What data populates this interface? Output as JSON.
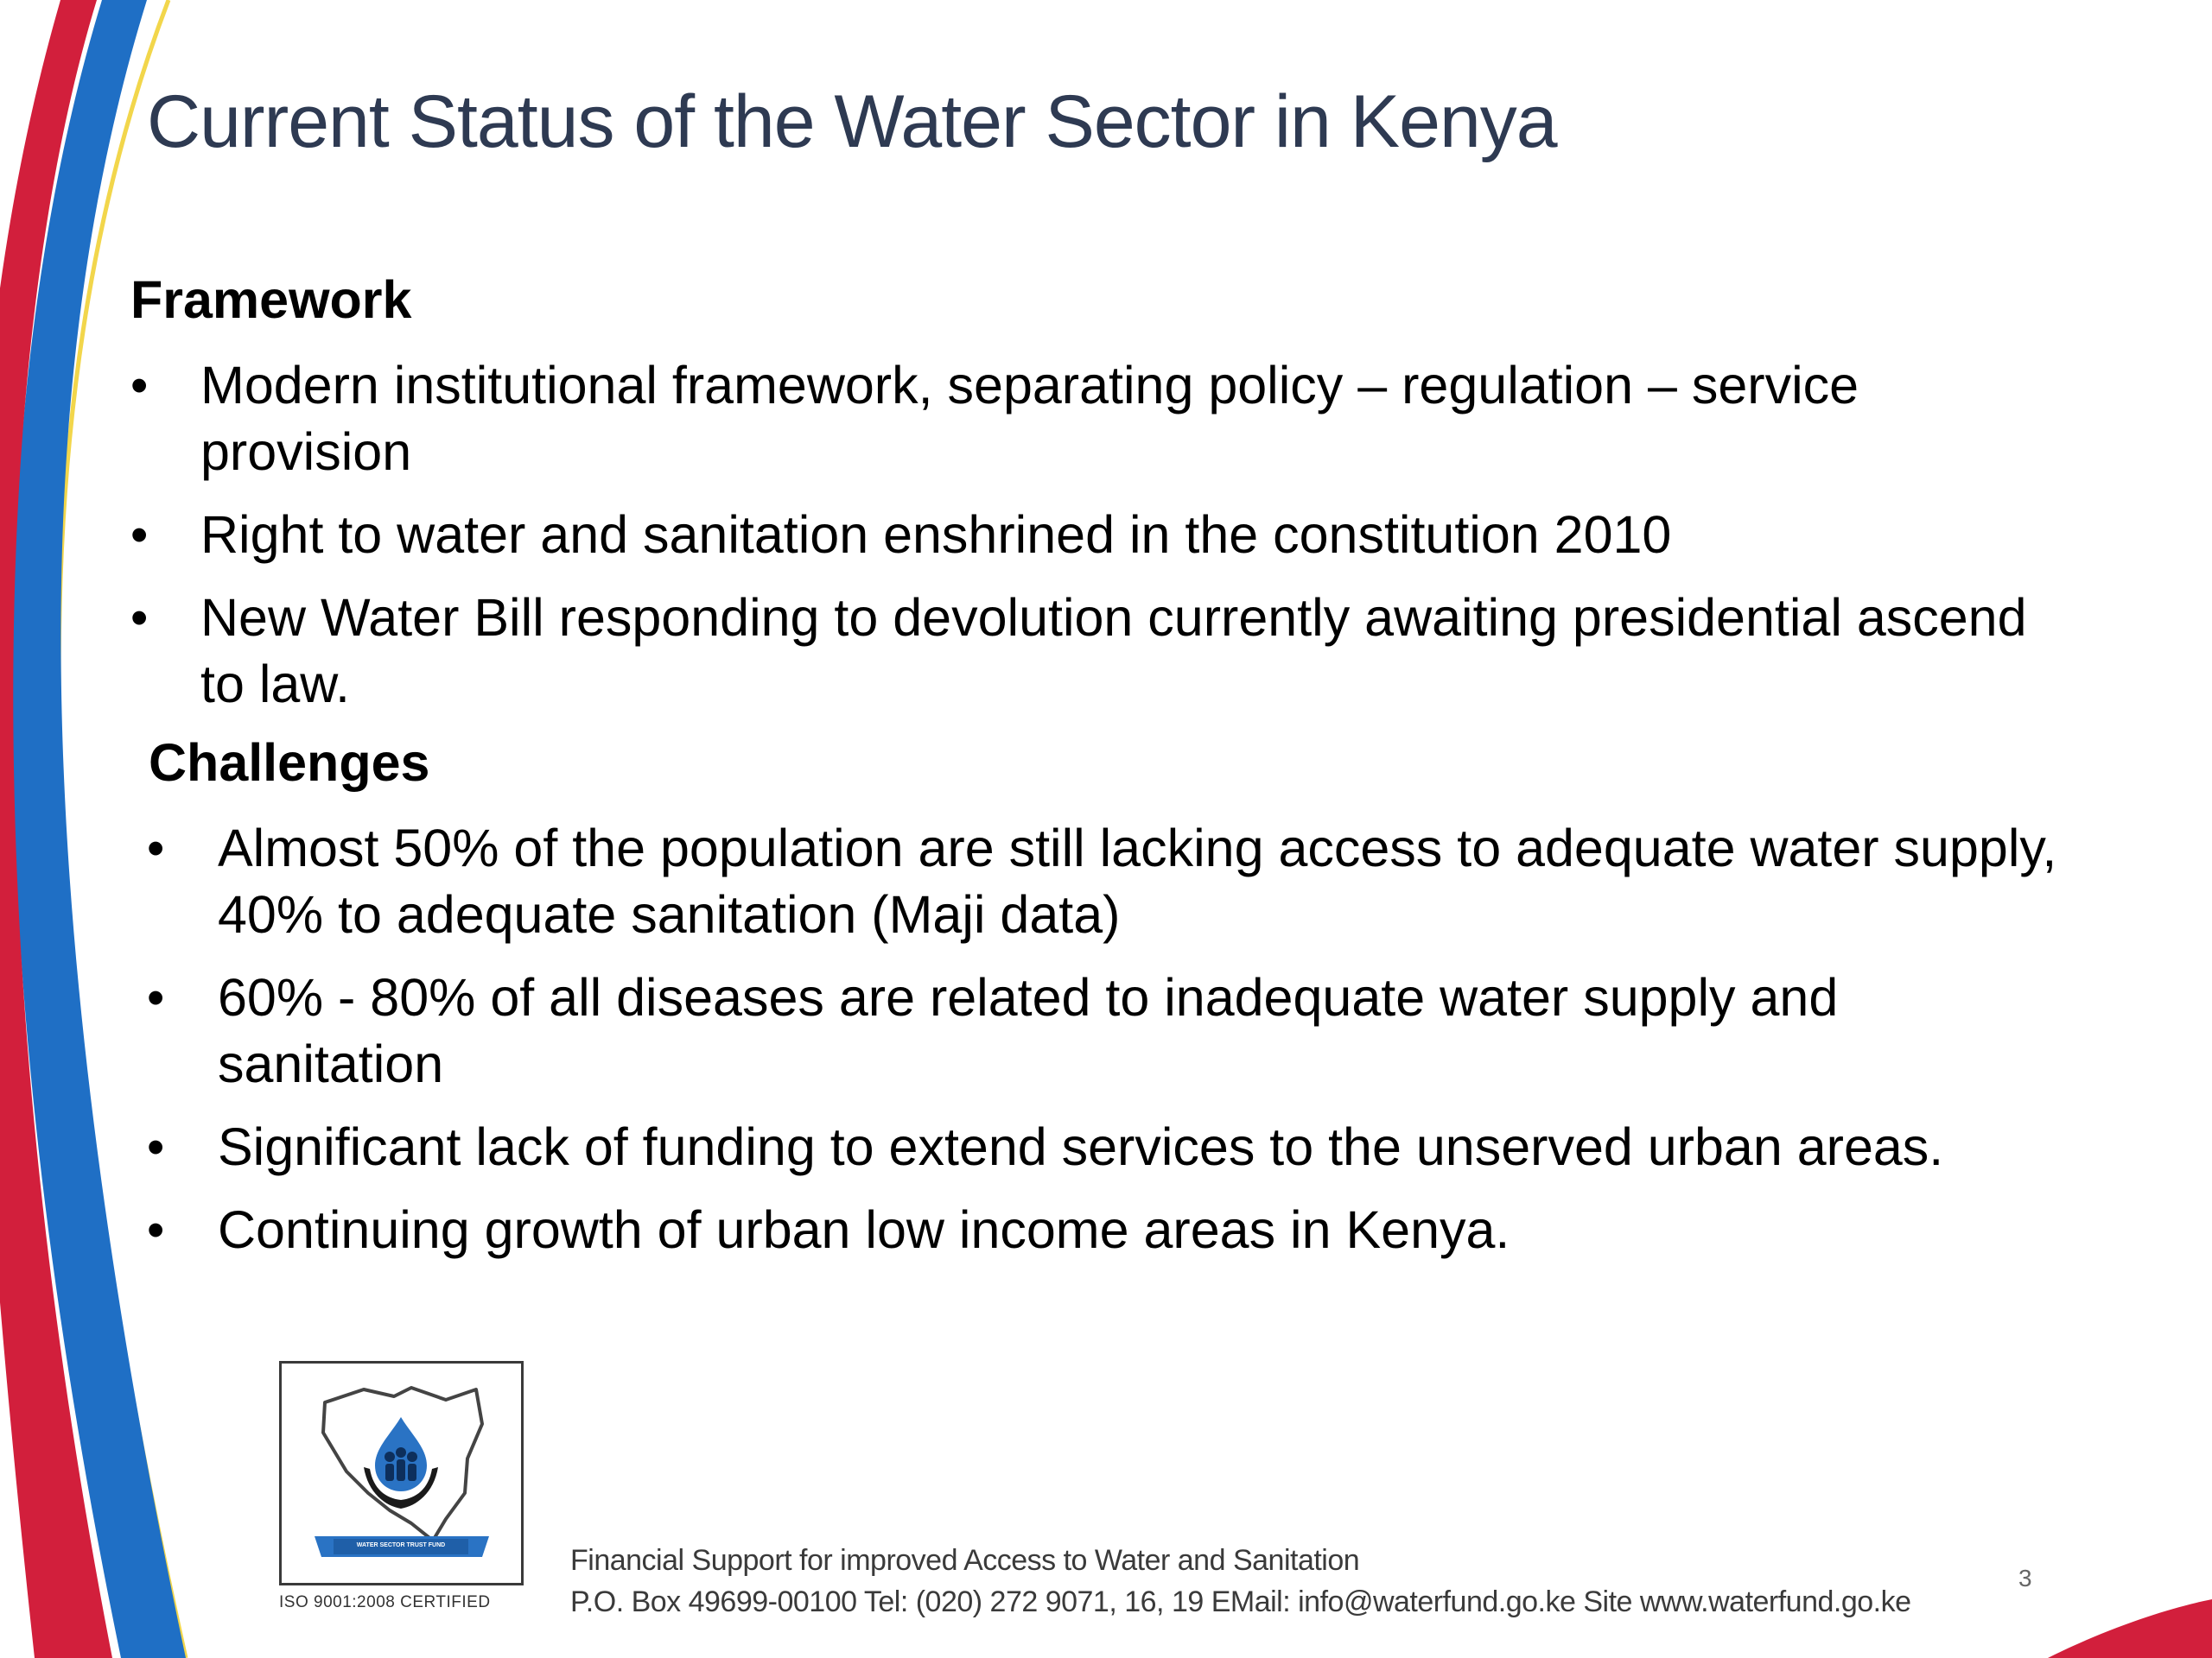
{
  "slide": {
    "title": "Current Status of the Water Sector in Kenya",
    "number": "3"
  },
  "framework": {
    "heading": "Framework",
    "bullets": [
      "Modern institutional framework, separating policy – regulation – service provision",
      "Right to water and sanitation enshrined in the constitution 2010",
      "New Water Bill responding to devolution currently awaiting presidential ascend to law."
    ]
  },
  "challenges": {
    "heading": "Challenges",
    "bullets": [
      "Almost 50% of the population are still lacking access to adequate water supply, 40% to adequate sanitation (Maji data)",
      "60% - 80% of all diseases are related to inadequate water supply and sanitation",
      "Significant lack of funding to extend services to the unserved urban areas.",
      "Continuing growth of urban low income areas in Kenya."
    ]
  },
  "bullet_symbol": "•",
  "logo": {
    "icon": "water-sector-trust-fund-logo",
    "banner_text": "WATER SECTOR TRUST FUND",
    "certification": "ISO 9001:2008 CERTIFIED"
  },
  "footer": {
    "tagline": "Financial Support for improved Access to Water and Sanitation",
    "contact": "P.O. Box 49699-00100 Tel: (020) 272 9071, 16, 19 EMail: info@waterfund.go.ke Site www.waterfund.go.ke"
  },
  "colors": {
    "title": "#2e3a52",
    "swoosh_red": "#d21f3c",
    "swoosh_blue": "#1f6fc5",
    "swoosh_yellow": "#f2d64b",
    "logo_blue": "#2a73c4"
  }
}
